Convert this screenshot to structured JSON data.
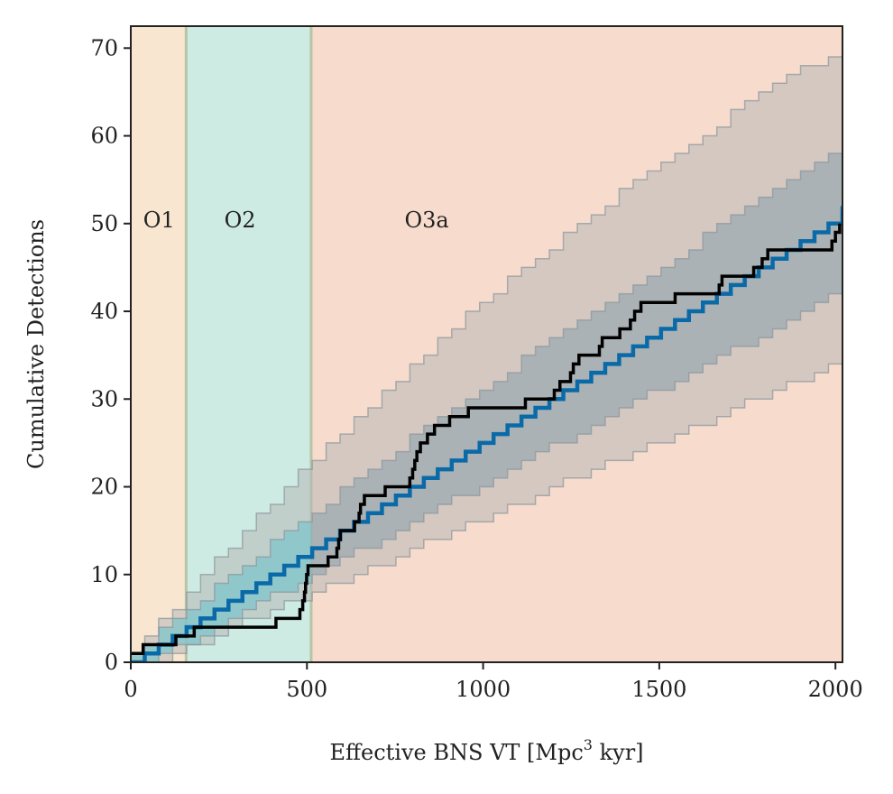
{
  "chart_data": {
    "type": "line",
    "title": "",
    "xlabel": "Effective BNS VT [Mpc",
    "xlabel_sup": "3",
    "xlabel_suffix": " kyr]",
    "ylabel": "Cumulative Detections",
    "xlim": [
      0,
      2020
    ],
    "ylim": [
      0,
      72.5
    ],
    "xticks": [
      0,
      500,
      1000,
      1500,
      2000
    ],
    "yticks": [
      0,
      10,
      20,
      30,
      40,
      50,
      60,
      70
    ],
    "grid": false,
    "colors": {
      "O1": "#f8e6d0",
      "O2": "#cdebe3",
      "O3a": "#f7dccd",
      "boundary": "#b6c4a8",
      "outer_band": "#b8b8b8",
      "inner_band_pre_o3": "#7fc4cb",
      "inner_band_o3": "#8fa3ae",
      "expected": "#0a6aa8",
      "observed": "#000000"
    },
    "observing_runs": [
      {
        "label": "O1",
        "x_start": 0,
        "x_end": 157,
        "label_x": 80,
        "label_y": 50.5
      },
      {
        "label": "O2",
        "x_start": 157,
        "x_end": 512,
        "label_x": 310,
        "label_y": 50.5
      },
      {
        "label": "O3a",
        "x_start": 512,
        "x_end": 2020,
        "label_x": 840,
        "label_y": 50.5
      }
    ],
    "expected_rate_per_unit": 0.02525,
    "bands": {
      "outer_coeffs": [
        [
          0.0,
          0.046,
          -5.8e-06
        ],
        [
          0.0,
          0.0175,
          0.0
        ]
      ],
      "inner_coeffs": [
        [
          0.0,
          0.0325,
          -2e-06
        ],
        [
          0.0,
          0.0215,
          0.0
        ]
      ]
    },
    "series": [
      {
        "name": "",
        "kind": "expected",
        "x_max": 2020
      },
      {
        "name": "",
        "kind": "observed",
        "steps": [
          [
            0,
            1
          ],
          [
            35,
            2
          ],
          [
            128,
            3
          ],
          [
            180,
            4
          ],
          [
            412,
            5
          ],
          [
            480,
            6
          ],
          [
            488,
            7
          ],
          [
            493,
            8
          ],
          [
            496,
            9
          ],
          [
            499,
            10
          ],
          [
            503,
            11
          ],
          [
            560,
            12
          ],
          [
            585,
            13
          ],
          [
            590,
            14
          ],
          [
            595,
            15
          ],
          [
            635,
            16
          ],
          [
            648,
            17
          ],
          [
            652,
            18
          ],
          [
            663,
            19
          ],
          [
            722,
            20
          ],
          [
            792,
            21
          ],
          [
            800,
            22
          ],
          [
            806,
            23
          ],
          [
            812,
            24
          ],
          [
            822,
            25
          ],
          [
            842,
            26
          ],
          [
            862,
            27
          ],
          [
            905,
            28
          ],
          [
            958,
            29
          ],
          [
            1120,
            30
          ],
          [
            1202,
            31
          ],
          [
            1218,
            32
          ],
          [
            1248,
            33
          ],
          [
            1256,
            34
          ],
          [
            1272,
            35
          ],
          [
            1330,
            36
          ],
          [
            1338,
            37
          ],
          [
            1388,
            38
          ],
          [
            1418,
            39
          ],
          [
            1430,
            40
          ],
          [
            1448,
            41
          ],
          [
            1545,
            42
          ],
          [
            1670,
            43
          ],
          [
            1678,
            44
          ],
          [
            1768,
            45
          ],
          [
            1792,
            46
          ],
          [
            1808,
            47
          ],
          [
            1990,
            48
          ],
          [
            2000,
            49
          ],
          [
            2012,
            50
          ]
        ],
        "x_max": 2020
      }
    ]
  }
}
